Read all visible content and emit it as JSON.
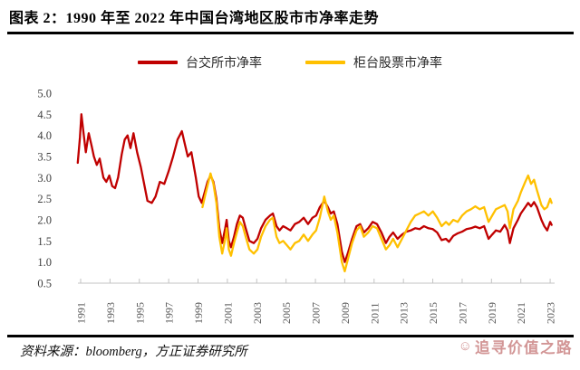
{
  "title": "图表 2：1990 年至 2022 年中国台湾地区股市市净率走势",
  "legend": [
    {
      "label": "台交所市净率",
      "color": "#C00000"
    },
    {
      "label": "柜台股票市净率",
      "color": "#FFC000"
    }
  ],
  "source": "资料来源：bloomberg，方正证券研究所",
  "watermark": "追寻价值之路",
  "watermark_icon_glyph": "☺",
  "colors": {
    "twse_line": "#C00000",
    "otc_line": "#FFC000",
    "axis": "#c3c3c3",
    "rule": "#000000",
    "watermark": "#ce8c8c"
  },
  "chart_data": {
    "type": "line",
    "title": "图表 2：1990 年至 2022 年中国台湾地区股市市净率走势",
    "xlabel": "",
    "ylabel": "",
    "ylim": [
      0.5,
      5.0
    ],
    "xlim": [
      1990.5,
      2023.3
    ],
    "grid": false,
    "legend_position": "top-center",
    "yticks": [
      5.0,
      4.5,
      4.0,
      3.5,
      3.0,
      2.5,
      2.0,
      1.5,
      1.0,
      0.5
    ],
    "xticks": [
      1991,
      1993,
      1995,
      1997,
      1999,
      2001,
      2003,
      2005,
      2007,
      2009,
      2011,
      2013,
      2015,
      2017,
      2019,
      2021,
      2023
    ],
    "series": [
      {
        "name": "台交所市净率",
        "color": "#C00000",
        "points": [
          [
            1990.8,
            3.35
          ],
          [
            1990.95,
            3.95
          ],
          [
            1991.05,
            4.5
          ],
          [
            1991.2,
            4.05
          ],
          [
            1991.35,
            3.6
          ],
          [
            1991.55,
            4.05
          ],
          [
            1991.75,
            3.75
          ],
          [
            1991.9,
            3.5
          ],
          [
            1992.1,
            3.3
          ],
          [
            1992.3,
            3.45
          ],
          [
            1992.55,
            3.0
          ],
          [
            1992.75,
            2.9
          ],
          [
            1992.95,
            3.05
          ],
          [
            1993.15,
            2.8
          ],
          [
            1993.35,
            2.75
          ],
          [
            1993.55,
            3.0
          ],
          [
            1993.8,
            3.55
          ],
          [
            1994.0,
            3.9
          ],
          [
            1994.2,
            4.0
          ],
          [
            1994.4,
            3.7
          ],
          [
            1994.6,
            4.05
          ],
          [
            1994.85,
            3.6
          ],
          [
            1995.1,
            3.25
          ],
          [
            1995.3,
            2.9
          ],
          [
            1995.55,
            2.45
          ],
          [
            1995.85,
            2.4
          ],
          [
            1996.1,
            2.55
          ],
          [
            1996.4,
            2.9
          ],
          [
            1996.7,
            2.85
          ],
          [
            1997.0,
            3.15
          ],
          [
            1997.3,
            3.5
          ],
          [
            1997.6,
            3.9
          ],
          [
            1997.9,
            4.1
          ],
          [
            1998.1,
            3.8
          ],
          [
            1998.3,
            3.5
          ],
          [
            1998.55,
            3.6
          ],
          [
            1998.85,
            3.0
          ],
          [
            1999.05,
            2.55
          ],
          [
            1999.25,
            2.4
          ],
          [
            1999.45,
            2.65
          ],
          [
            1999.65,
            2.9
          ],
          [
            1999.85,
            3.05
          ],
          [
            2000.05,
            2.9
          ],
          [
            2000.25,
            2.5
          ],
          [
            2000.45,
            1.8
          ],
          [
            2000.65,
            1.45
          ],
          [
            2000.85,
            1.8
          ],
          [
            2000.95,
            2.0
          ],
          [
            2001.1,
            1.5
          ],
          [
            2001.25,
            1.35
          ],
          [
            2001.45,
            1.6
          ],
          [
            2001.65,
            1.9
          ],
          [
            2001.85,
            2.1
          ],
          [
            2002.05,
            2.05
          ],
          [
            2002.25,
            1.8
          ],
          [
            2002.5,
            1.5
          ],
          [
            2002.8,
            1.45
          ],
          [
            2003.05,
            1.55
          ],
          [
            2003.3,
            1.8
          ],
          [
            2003.6,
            2.0
          ],
          [
            2003.9,
            2.1
          ],
          [
            2004.1,
            2.15
          ],
          [
            2004.35,
            1.85
          ],
          [
            2004.55,
            1.75
          ],
          [
            2004.8,
            1.85
          ],
          [
            2005.05,
            1.8
          ],
          [
            2005.3,
            1.75
          ],
          [
            2005.6,
            1.9
          ],
          [
            2005.9,
            1.95
          ],
          [
            2006.2,
            2.05
          ],
          [
            2006.5,
            1.9
          ],
          [
            2006.8,
            2.05
          ],
          [
            2007.05,
            2.1
          ],
          [
            2007.3,
            2.3
          ],
          [
            2007.6,
            2.45
          ],
          [
            2007.85,
            2.3
          ],
          [
            2008.05,
            2.15
          ],
          [
            2008.25,
            2.2
          ],
          [
            2008.5,
            1.9
          ],
          [
            2008.8,
            1.25
          ],
          [
            2009.0,
            1.0
          ],
          [
            2009.2,
            1.2
          ],
          [
            2009.5,
            1.55
          ],
          [
            2009.8,
            1.85
          ],
          [
            2010.05,
            1.9
          ],
          [
            2010.3,
            1.7
          ],
          [
            2010.6,
            1.8
          ],
          [
            2010.9,
            1.95
          ],
          [
            2011.2,
            1.9
          ],
          [
            2011.5,
            1.7
          ],
          [
            2011.8,
            1.45
          ],
          [
            2012.05,
            1.6
          ],
          [
            2012.3,
            1.7
          ],
          [
            2012.6,
            1.55
          ],
          [
            2012.9,
            1.65
          ],
          [
            2013.2,
            1.72
          ],
          [
            2013.5,
            1.75
          ],
          [
            2013.8,
            1.8
          ],
          [
            2014.1,
            1.78
          ],
          [
            2014.4,
            1.85
          ],
          [
            2014.7,
            1.8
          ],
          [
            2015.0,
            1.78
          ],
          [
            2015.3,
            1.7
          ],
          [
            2015.6,
            1.52
          ],
          [
            2015.9,
            1.55
          ],
          [
            2016.1,
            1.48
          ],
          [
            2016.4,
            1.62
          ],
          [
            2016.7,
            1.68
          ],
          [
            2017.0,
            1.72
          ],
          [
            2017.3,
            1.78
          ],
          [
            2017.6,
            1.8
          ],
          [
            2017.9,
            1.84
          ],
          [
            2018.2,
            1.8
          ],
          [
            2018.5,
            1.85
          ],
          [
            2018.8,
            1.55
          ],
          [
            2019.05,
            1.65
          ],
          [
            2019.3,
            1.75
          ],
          [
            2019.6,
            1.72
          ],
          [
            2019.9,
            1.88
          ],
          [
            2020.1,
            1.75
          ],
          [
            2020.25,
            1.45
          ],
          [
            2020.5,
            1.8
          ],
          [
            2020.8,
            2.0
          ],
          [
            2021.0,
            2.15
          ],
          [
            2021.3,
            2.3
          ],
          [
            2021.5,
            2.4
          ],
          [
            2021.7,
            2.32
          ],
          [
            2021.9,
            2.42
          ],
          [
            2022.1,
            2.3
          ],
          [
            2022.4,
            2.0
          ],
          [
            2022.6,
            1.85
          ],
          [
            2022.8,
            1.75
          ],
          [
            2023.0,
            1.95
          ],
          [
            2023.1,
            1.88
          ]
        ]
      },
      {
        "name": "柜台股票市净率",
        "color": "#FFC000",
        "points": [
          [
            1999.3,
            2.3
          ],
          [
            1999.5,
            2.6
          ],
          [
            1999.85,
            3.1
          ],
          [
            2000.05,
            2.85
          ],
          [
            2000.25,
            2.4
          ],
          [
            2000.45,
            1.6
          ],
          [
            2000.65,
            1.2
          ],
          [
            2000.85,
            1.55
          ],
          [
            2000.95,
            1.8
          ],
          [
            2001.1,
            1.3
          ],
          [
            2001.25,
            1.15
          ],
          [
            2001.45,
            1.45
          ],
          [
            2001.65,
            1.7
          ],
          [
            2001.85,
            1.95
          ],
          [
            2002.05,
            1.85
          ],
          [
            2002.25,
            1.6
          ],
          [
            2002.5,
            1.3
          ],
          [
            2002.8,
            1.2
          ],
          [
            2003.05,
            1.3
          ],
          [
            2003.3,
            1.6
          ],
          [
            2003.6,
            1.85
          ],
          [
            2003.9,
            2.0
          ],
          [
            2004.1,
            2.05
          ],
          [
            2004.35,
            1.6
          ],
          [
            2004.55,
            1.45
          ],
          [
            2004.8,
            1.5
          ],
          [
            2005.05,
            1.4
          ],
          [
            2005.3,
            1.3
          ],
          [
            2005.6,
            1.45
          ],
          [
            2005.9,
            1.5
          ],
          [
            2006.2,
            1.65
          ],
          [
            2006.5,
            1.5
          ],
          [
            2006.8,
            1.65
          ],
          [
            2007.05,
            1.75
          ],
          [
            2007.3,
            2.05
          ],
          [
            2007.6,
            2.55
          ],
          [
            2007.85,
            2.2
          ],
          [
            2008.05,
            2.0
          ],
          [
            2008.25,
            2.1
          ],
          [
            2008.5,
            1.7
          ],
          [
            2008.8,
            1.0
          ],
          [
            2009.0,
            0.78
          ],
          [
            2009.2,
            1.05
          ],
          [
            2009.5,
            1.45
          ],
          [
            2009.8,
            1.75
          ],
          [
            2010.05,
            1.85
          ],
          [
            2010.3,
            1.6
          ],
          [
            2010.6,
            1.7
          ],
          [
            2010.9,
            1.85
          ],
          [
            2011.2,
            1.8
          ],
          [
            2011.5,
            1.55
          ],
          [
            2011.8,
            1.3
          ],
          [
            2012.05,
            1.4
          ],
          [
            2012.3,
            1.55
          ],
          [
            2012.6,
            1.35
          ],
          [
            2012.9,
            1.55
          ],
          [
            2013.2,
            1.75
          ],
          [
            2013.5,
            1.95
          ],
          [
            2013.8,
            2.1
          ],
          [
            2014.1,
            2.15
          ],
          [
            2014.4,
            2.2
          ],
          [
            2014.7,
            2.1
          ],
          [
            2015.0,
            2.2
          ],
          [
            2015.3,
            2.05
          ],
          [
            2015.6,
            1.85
          ],
          [
            2015.9,
            1.95
          ],
          [
            2016.1,
            1.88
          ],
          [
            2016.4,
            2.0
          ],
          [
            2016.7,
            1.95
          ],
          [
            2017.0,
            2.1
          ],
          [
            2017.3,
            2.2
          ],
          [
            2017.6,
            2.25
          ],
          [
            2017.9,
            2.32
          ],
          [
            2018.2,
            2.25
          ],
          [
            2018.5,
            2.3
          ],
          [
            2018.8,
            1.95
          ],
          [
            2019.05,
            2.1
          ],
          [
            2019.3,
            2.25
          ],
          [
            2019.6,
            2.3
          ],
          [
            2019.9,
            2.35
          ],
          [
            2020.1,
            2.2
          ],
          [
            2020.25,
            1.8
          ],
          [
            2020.5,
            2.25
          ],
          [
            2020.8,
            2.45
          ],
          [
            2021.0,
            2.65
          ],
          [
            2021.3,
            2.9
          ],
          [
            2021.5,
            3.05
          ],
          [
            2021.7,
            2.85
          ],
          [
            2021.9,
            2.95
          ],
          [
            2022.1,
            2.7
          ],
          [
            2022.4,
            2.35
          ],
          [
            2022.6,
            2.25
          ],
          [
            2022.8,
            2.3
          ],
          [
            2023.0,
            2.5
          ],
          [
            2023.1,
            2.4
          ]
        ]
      }
    ]
  }
}
